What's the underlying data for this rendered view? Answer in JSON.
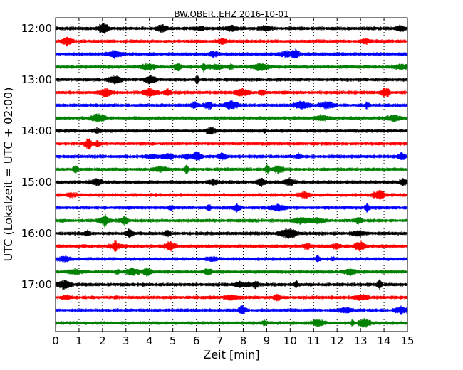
{
  "chart_data": {
    "type": "line",
    "title": "BW.OBER..EHZ 2016-10-01",
    "xlabel": "Zeit  [min]",
    "ylabel": "UTC (Lokalzeit = UTC + 02:00)",
    "xlim": [
      0,
      15
    ],
    "x_ticks": [
      "0",
      "1",
      "2",
      "3",
      "4",
      "5",
      "6",
      "7",
      "8",
      "9",
      "10",
      "11",
      "12",
      "13",
      "14",
      "15"
    ],
    "y_ticks": [
      "12:00",
      "13:00",
      "14:00",
      "15:00",
      "16:00",
      "17:00"
    ],
    "grid": "vertical dotted",
    "trace_minutes_per_line": 15,
    "series_colors": [
      "#000000",
      "#ff0000",
      "#0000ff",
      "#008000"
    ],
    "traces": [
      {
        "start": "12:00",
        "color": "#000000"
      },
      {
        "start": "12:15",
        "color": "#ff0000"
      },
      {
        "start": "12:30",
        "color": "#0000ff"
      },
      {
        "start": "12:45",
        "color": "#008000"
      },
      {
        "start": "13:00",
        "color": "#000000"
      },
      {
        "start": "13:15",
        "color": "#ff0000"
      },
      {
        "start": "13:30",
        "color": "#0000ff"
      },
      {
        "start": "13:45",
        "color": "#008000"
      },
      {
        "start": "14:00",
        "color": "#000000"
      },
      {
        "start": "14:15",
        "color": "#ff0000"
      },
      {
        "start": "14:30",
        "color": "#0000ff"
      },
      {
        "start": "14:45",
        "color": "#008000"
      },
      {
        "start": "15:00",
        "color": "#000000"
      },
      {
        "start": "15:15",
        "color": "#ff0000"
      },
      {
        "start": "15:30",
        "color": "#0000ff"
      },
      {
        "start": "15:45",
        "color": "#008000"
      },
      {
        "start": "16:00",
        "color": "#000000"
      },
      {
        "start": "16:15",
        "color": "#ff0000"
      },
      {
        "start": "16:30",
        "color": "#0000ff"
      },
      {
        "start": "16:45",
        "color": "#008000"
      },
      {
        "start": "17:00",
        "color": "#000000"
      },
      {
        "start": "17:15",
        "color": "#ff0000"
      },
      {
        "start": "17:30",
        "color": "#0000ff"
      },
      {
        "start": "17:45",
        "color": "#008000"
      }
    ]
  }
}
